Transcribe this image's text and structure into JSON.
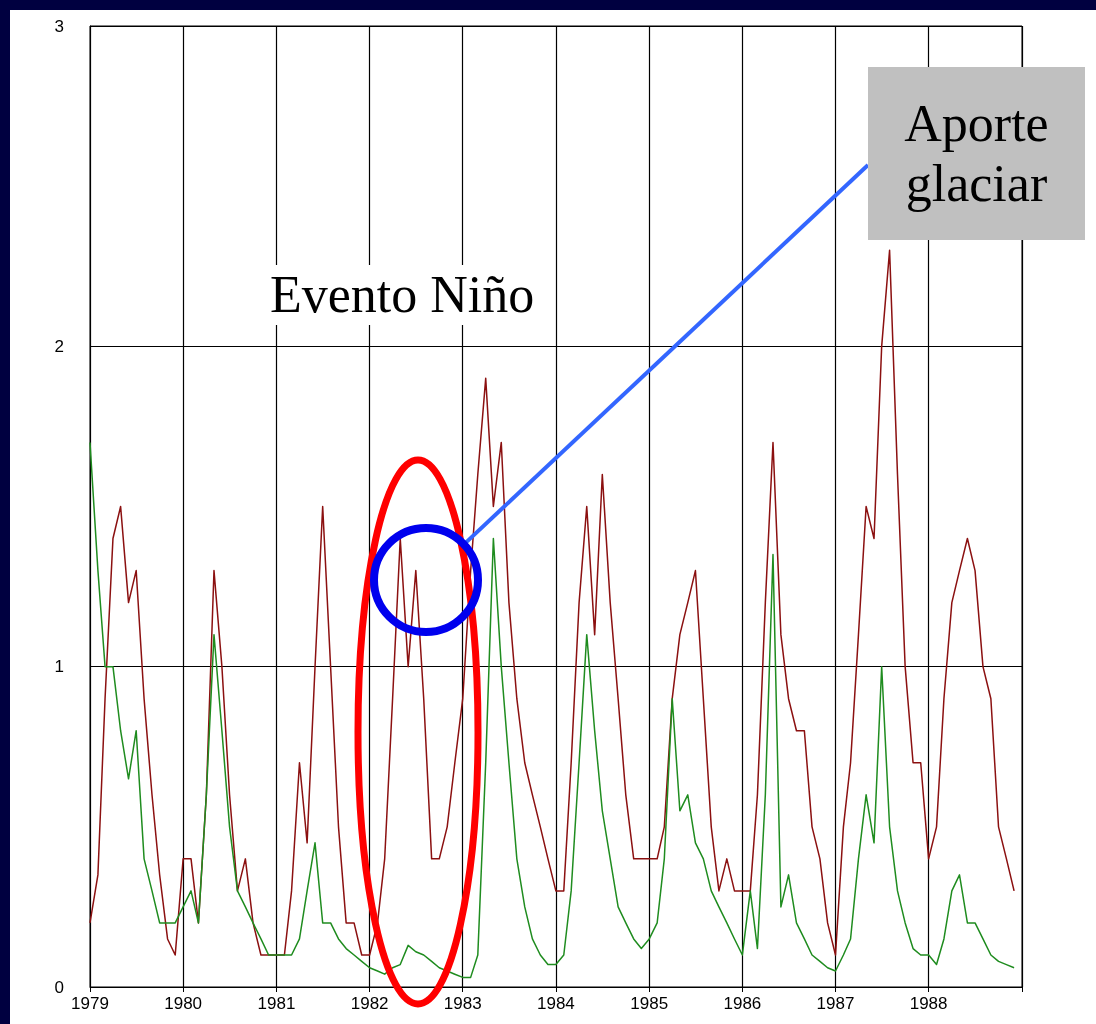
{
  "chart_data": {
    "type": "line",
    "x": [
      "1979-01",
      "1979-02",
      "1979-03",
      "1979-04",
      "1979-05",
      "1979-06",
      "1979-07",
      "1979-08",
      "1979-09",
      "1979-10",
      "1979-11",
      "1979-12",
      "1980-01",
      "1980-02",
      "1980-03",
      "1980-04",
      "1980-05",
      "1980-06",
      "1980-07",
      "1980-08",
      "1980-09",
      "1980-10",
      "1980-11",
      "1980-12",
      "1981-01",
      "1981-02",
      "1981-03",
      "1981-04",
      "1981-05",
      "1981-06",
      "1981-07",
      "1981-08",
      "1981-09",
      "1981-10",
      "1981-11",
      "1981-12",
      "1982-01",
      "1982-02",
      "1982-03",
      "1982-04",
      "1982-05",
      "1982-06",
      "1982-07",
      "1982-08",
      "1982-09",
      "1982-10",
      "1982-11",
      "1982-12",
      "1983-01",
      "1983-02",
      "1983-03",
      "1983-04",
      "1983-05",
      "1983-06",
      "1983-07",
      "1983-08",
      "1983-09",
      "1983-10",
      "1983-11",
      "1983-12",
      "1984-01",
      "1984-02",
      "1984-03",
      "1984-04",
      "1984-05",
      "1984-06",
      "1984-07",
      "1984-08",
      "1984-09",
      "1984-10",
      "1984-11",
      "1984-12",
      "1985-01",
      "1985-02",
      "1985-03",
      "1985-04",
      "1985-05",
      "1985-06",
      "1985-07",
      "1985-08",
      "1985-09",
      "1985-10",
      "1985-11",
      "1985-12",
      "1986-01",
      "1986-02",
      "1986-03",
      "1986-04",
      "1986-05",
      "1986-06",
      "1986-07",
      "1986-08",
      "1986-09",
      "1986-10",
      "1986-11",
      "1986-12",
      "1987-01",
      "1987-02",
      "1987-03",
      "1987-04",
      "1987-05",
      "1987-06",
      "1987-07",
      "1987-08",
      "1987-09",
      "1987-10",
      "1987-11",
      "1987-12",
      "1988-01",
      "1988-02",
      "1988-03",
      "1988-04",
      "1988-05",
      "1988-06",
      "1988-07",
      "1988-08",
      "1988-09",
      "1988-10",
      "1988-11",
      "1988-12"
    ],
    "series": [
      {
        "color": "#8b1010",
        "values": [
          0.2,
          0.35,
          0.9,
          1.4,
          1.5,
          1.2,
          1.3,
          0.9,
          0.6,
          0.35,
          0.15,
          0.1,
          0.4,
          0.4,
          0.2,
          0.6,
          1.3,
          1.0,
          0.6,
          0.3,
          0.4,
          0.2,
          0.1,
          0.1,
          0.1,
          0.1,
          0.3,
          0.7,
          0.45,
          1.0,
          1.5,
          1.0,
          0.5,
          0.2,
          0.2,
          0.1,
          0.1,
          0.2,
          0.4,
          0.9,
          1.4,
          1.0,
          1.3,
          0.9,
          0.4,
          0.4,
          0.5,
          0.7,
          0.9,
          1.3,
          1.6,
          1.9,
          1.5,
          1.7,
          1.2,
          0.9,
          0.7,
          0.6,
          0.5,
          0.4,
          0.3,
          0.3,
          0.7,
          1.2,
          1.5,
          1.1,
          1.6,
          1.2,
          0.9,
          0.6,
          0.4,
          0.4,
          0.4,
          0.4,
          0.5,
          0.9,
          1.1,
          1.2,
          1.3,
          0.9,
          0.5,
          0.3,
          0.4,
          0.3,
          0.3,
          0.3,
          0.6,
          1.2,
          1.7,
          1.1,
          0.9,
          0.8,
          0.8,
          0.5,
          0.4,
          0.2,
          0.1,
          0.5,
          0.7,
          1.1,
          1.5,
          1.4,
          2.0,
          2.3,
          1.6,
          1.0,
          0.7,
          0.7,
          0.4,
          0.5,
          0.9,
          1.2,
          1.3,
          1.4,
          1.3,
          1.0,
          0.9,
          0.5,
          0.4,
          0.3
        ]
      },
      {
        "color": "#1f8c1f",
        "values": [
          1.7,
          1.3,
          1.0,
          1.0,
          0.8,
          0.65,
          0.8,
          0.4,
          0.3,
          0.2,
          0.2,
          0.2,
          0.25,
          0.3,
          0.2,
          0.6,
          1.1,
          0.8,
          0.5,
          0.3,
          0.25,
          0.2,
          0.15,
          0.1,
          0.1,
          0.1,
          0.1,
          0.15,
          0.3,
          0.45,
          0.2,
          0.2,
          0.15,
          0.12,
          0.1,
          0.08,
          0.06,
          0.05,
          0.04,
          0.06,
          0.07,
          0.13,
          0.11,
          0.1,
          0.08,
          0.06,
          0.05,
          0.04,
          0.03,
          0.03,
          0.1,
          0.7,
          1.4,
          1.0,
          0.7,
          0.4,
          0.25,
          0.15,
          0.1,
          0.07,
          0.07,
          0.1,
          0.3,
          0.7,
          1.1,
          0.8,
          0.55,
          0.4,
          0.25,
          0.2,
          0.15,
          0.12,
          0.15,
          0.2,
          0.4,
          0.9,
          0.55,
          0.6,
          0.45,
          0.4,
          0.3,
          0.25,
          0.2,
          0.15,
          0.1,
          0.3,
          0.12,
          0.6,
          1.35,
          0.25,
          0.35,
          0.2,
          0.15,
          0.1,
          0.08,
          0.06,
          0.05,
          0.1,
          0.15,
          0.4,
          0.6,
          0.45,
          1.0,
          0.5,
          0.3,
          0.2,
          0.12,
          0.1,
          0.1,
          0.07,
          0.15,
          0.3,
          0.35,
          0.2,
          0.2,
          0.15,
          0.1,
          0.08,
          0.07,
          0.06
        ]
      }
    ],
    "xlim": [
      "1979",
      "1989"
    ],
    "xticks": [
      "1979",
      "1980",
      "1981",
      "1982",
      "1983",
      "1984",
      "1985",
      "1986",
      "1987",
      "1988",
      {
        "value": "1989",
        "label": null
      }
    ],
    "ylim": [
      0,
      3
    ],
    "yticks": [
      0,
      1,
      2,
      3
    ],
    "grid": true,
    "marker": "none",
    "line_style": "solid",
    "annotations": [
      "Evento Niño",
      "Aporte glaciar"
    ]
  }
}
